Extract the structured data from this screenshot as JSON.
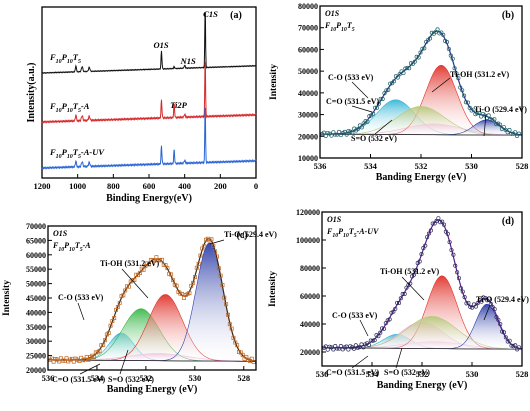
{
  "colors": {
    "frame": "#000000",
    "fit_envelope": "#2a2f8a",
    "baseline": "#333333",
    "peak_co": "#35b6d6",
    "peak_c_eq_o": "#f0a6dc",
    "peak_tioh": "#e0322a",
    "peak_s_eq_o": "#3ab84a",
    "peak_s_eq_o_b": "#b7c77a",
    "peak_tio": "#2d3ea8",
    "survey_black": "#111111",
    "survey_red": "#d62a2a",
    "survey_blue": "#2a66d6"
  },
  "chart_data": [
    {
      "panel": "(a)",
      "type": "line",
      "xlabel": "Binding Energy(eV)",
      "ylabel": "Intensity(a.u.)",
      "xlim": [
        1200,
        0
      ],
      "xticks": [
        1200,
        1000,
        800,
        600,
        400,
        200,
        0
      ],
      "peak_labels": [
        {
          "text": "C1S",
          "x": 285
        },
        {
          "text": "O1S",
          "x": 530
        },
        {
          "text": "N1S",
          "x": 400
        },
        {
          "text": "Ti2P",
          "x": 459
        }
      ],
      "series": [
        {
          "name": "F10P10T5",
          "label_main": "F",
          "label_subs": [
            "10",
            "P",
            "10",
            "T",
            "5",
            ""
          ],
          "offset": 0.0,
          "color_key": "survey_black"
        },
        {
          "name": "F10P10T5-A",
          "label_main": "F",
          "label_subs": [
            "10",
            "P",
            "10",
            "T",
            "5",
            "-A"
          ],
          "offset": 0.0,
          "color_key": "survey_red"
        },
        {
          "name": "F10P10T5-A-UV",
          "label_main": "F",
          "label_subs": [
            "10",
            "P",
            "10",
            "T",
            "5",
            "-A-UV"
          ],
          "offset": 0.0,
          "color_key": "survey_blue"
        }
      ]
    },
    {
      "panel": "(b)",
      "type": "line",
      "element": "O1S",
      "sample": "F10P10T5",
      "xlabel": "Banding Energy (eV)",
      "ylabel": "Intensity",
      "xlim": [
        536,
        528
      ],
      "ylim": [
        10000,
        80000
      ],
      "xticks": [
        536,
        534,
        532,
        530,
        528
      ],
      "yticks": [
        10000,
        20000,
        30000,
        40000,
        50000,
        60000,
        70000,
        80000
      ],
      "baseline": [
        21000,
        20500
      ],
      "peaks": [
        {
          "label": "C-O (533 eV)",
          "center": 533.0,
          "height": 16000,
          "width": 0.75,
          "color_key": "peak_co"
        },
        {
          "label": "C=O (531.5 eV)",
          "center": 531.5,
          "height": 5000,
          "width": 1.1,
          "color_key": "peak_c_eq_o"
        },
        {
          "label": "Ti-OH (531.2 eV)",
          "center": 531.2,
          "height": 32000,
          "width": 0.62,
          "color_key": "peak_tioh"
        },
        {
          "label": "S=O (532 eV)",
          "center": 532.0,
          "height": 13000,
          "width": 0.95,
          "color_key": "peak_s_eq_o_b"
        },
        {
          "label": "Ti-O (529.4 eV)",
          "center": 529.4,
          "height": 7000,
          "width": 0.5,
          "color_key": "peak_tio"
        }
      ]
    },
    {
      "panel": "(c)",
      "type": "line",
      "element": "O1S",
      "sample": "F10P10T5-A",
      "xlabel": "Banding Energy (eV)",
      "ylabel": "Intensity",
      "xlim": [
        536,
        527.5
      ],
      "ylim": [
        20000,
        70000
      ],
      "xticks": [
        536,
        534,
        532,
        530,
        528
      ],
      "yticks": [
        20000,
        25000,
        30000,
        35000,
        40000,
        45000,
        50000,
        55000,
        60000,
        65000,
        70000
      ],
      "baseline": [
        23500,
        23000
      ],
      "peaks": [
        {
          "label": "C-O (533 eV)",
          "center": 533.0,
          "height": 9500,
          "width": 0.5,
          "color_key": "peak_co"
        },
        {
          "label": "C=O (531.5 eV)",
          "center": 531.5,
          "height": 2500,
          "width": 1.2,
          "color_key": "peak_c_eq_o"
        },
        {
          "label": "S=O (532 eV)",
          "center": 532.2,
          "height": 18000,
          "width": 0.75,
          "color_key": "peak_s_eq_o"
        },
        {
          "label": "Ti-OH (531.2 eV)",
          "center": 531.2,
          "height": 23000,
          "width": 0.7,
          "color_key": "peak_tioh"
        },
        {
          "label": "Ti-O (529.4 eV)",
          "center": 529.4,
          "height": 41000,
          "width": 0.55,
          "color_key": "peak_tio"
        }
      ]
    },
    {
      "panel": "(d)",
      "type": "line",
      "element": "O1S",
      "sample": "F10P10T5-A-UV",
      "xlabel": "Banding Energy (eV)",
      "ylabel": "Intensity",
      "xlim": [
        536,
        528
      ],
      "ylim": [
        10000,
        120000
      ],
      "xticks": [
        536,
        534,
        532,
        530,
        528
      ],
      "yticks": [
        20000,
        40000,
        60000,
        80000,
        100000,
        120000
      ],
      "baseline": [
        23000,
        22000
      ],
      "peaks": [
        {
          "label": "C-O (533 eV)",
          "center": 533.0,
          "height": 10000,
          "width": 0.55,
          "color_key": "peak_co"
        },
        {
          "label": "C=O (531.5 eV)",
          "center": 531.5,
          "height": 5000,
          "width": 1.2,
          "color_key": "peak_c_eq_o"
        },
        {
          "label": "S=O (532 eV)",
          "center": 532.0,
          "height": 19000,
          "width": 0.85,
          "color_key": "peak_c_eq_o"
        },
        {
          "label": "Ti-OH (531.2 eV)",
          "center": 531.2,
          "height": 52000,
          "width": 0.6,
          "color_key": "peak_tioh"
        },
        {
          "label": "S=O (532 eV)_b",
          "center": 531.6,
          "height": 23000,
          "width": 1.0,
          "color_key": "peak_s_eq_o_b"
        },
        {
          "label": "Ti-O (529.4 eV)",
          "center": 529.4,
          "height": 32000,
          "width": 0.45,
          "color_key": "peak_tio"
        }
      ]
    }
  ],
  "text": {
    "a_title": "(a)",
    "a_xlabel": "Binding Energy(eV)",
    "a_ylabel": "Intensity(a.u.)",
    "b_title": "(b)",
    "c_title": "(c)",
    "d_title": "(d)"
  }
}
